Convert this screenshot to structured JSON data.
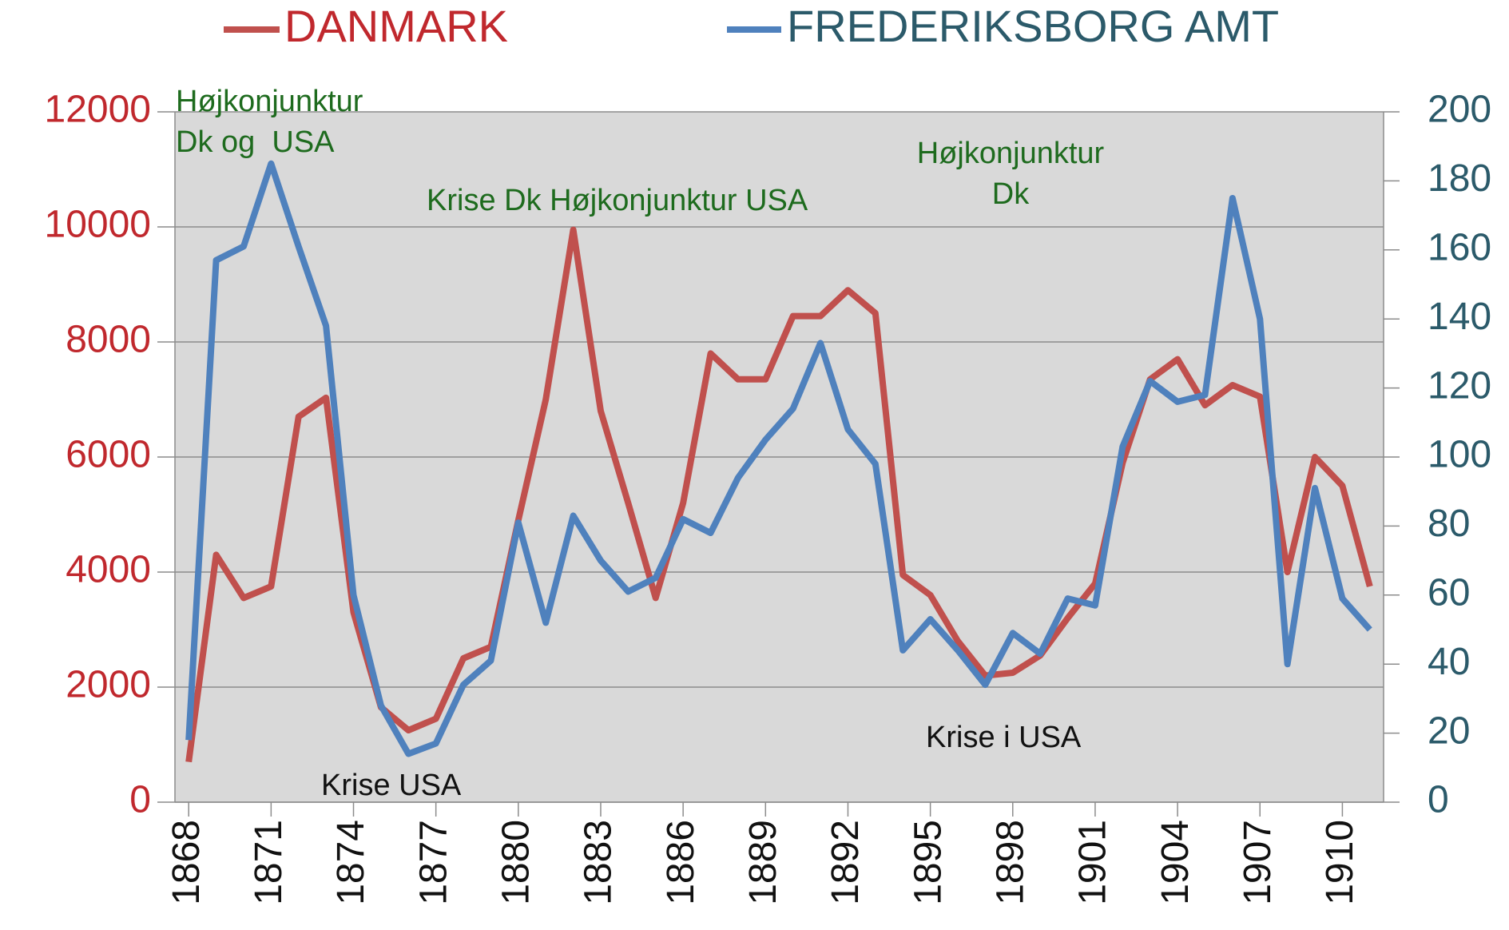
{
  "chart_data": {
    "type": "line",
    "x": [
      1868,
      1869,
      1870,
      1871,
      1872,
      1873,
      1874,
      1875,
      1876,
      1877,
      1878,
      1879,
      1880,
      1881,
      1882,
      1883,
      1884,
      1885,
      1886,
      1887,
      1888,
      1889,
      1890,
      1891,
      1892,
      1893,
      1894,
      1895,
      1896,
      1897,
      1898,
      1899,
      1900,
      1901,
      1902,
      1903,
      1904,
      1905,
      1906,
      1907,
      1908,
      1909,
      1910,
      1911
    ],
    "series": [
      {
        "name": "DANMARK",
        "color": "#c0504d",
        "values": [
          700,
          4300,
          3550,
          3750,
          6700,
          7030,
          3300,
          1650,
          1250,
          1450,
          2500,
          2700,
          4900,
          7000,
          9950,
          6800,
          5200,
          3550,
          5200,
          7800,
          7350,
          7350,
          8450,
          8450,
          8900,
          8500,
          3950,
          3600,
          2800,
          2200,
          2250,
          2550,
          3200,
          3800,
          5900,
          7350,
          7700,
          6900,
          7250,
          7050,
          4000,
          6000,
          5500,
          3750
        ]
      },
      {
        "name": "FREDERIKSBORG AMT",
        "color": "#4f81bd",
        "axis": "y2",
        "values": [
          18,
          157,
          161,
          185,
          161,
          138,
          60,
          28,
          14,
          17,
          34,
          41,
          81,
          52,
          83,
          70,
          61,
          65,
          82,
          78,
          94,
          105,
          114,
          133,
          108,
          98,
          44,
          53,
          44,
          34,
          49,
          43,
          59,
          57,
          103,
          122,
          116,
          118,
          175,
          140,
          40,
          91,
          59,
          50
        ]
      }
    ],
    "xlim": [
      1867.5,
      1911.5
    ],
    "xticks": [
      1868,
      1871,
      1874,
      1877,
      1880,
      1883,
      1886,
      1889,
      1892,
      1895,
      1898,
      1901,
      1904,
      1907,
      1910
    ],
    "ylim": [
      0,
      12000
    ],
    "yticks": [
      0,
      2000,
      4000,
      6000,
      8000,
      10000,
      12000
    ],
    "y2lim": [
      0,
      200
    ],
    "y2ticks": [
      0,
      20,
      40,
      60,
      80,
      100,
      120,
      140,
      160,
      180,
      200
    ],
    "grid": true,
    "legend": "top",
    "annotations": [
      {
        "lines": [
          "Højkonjunktur",
          "Dk og  USA"
        ],
        "color": "#1e6b1e"
      },
      {
        "lines": [
          "Krise Dk Højkonjunktur USA"
        ],
        "color": "#1e6b1e"
      },
      {
        "lines": [
          "Højkonjunktur",
          "Dk"
        ],
        "color": "#1e6b1e"
      },
      {
        "lines": [
          "Krise i USA"
        ],
        "color": "#111111"
      },
      {
        "lines": [
          "Krise USA"
        ],
        "color": "#111111"
      }
    ]
  }
}
